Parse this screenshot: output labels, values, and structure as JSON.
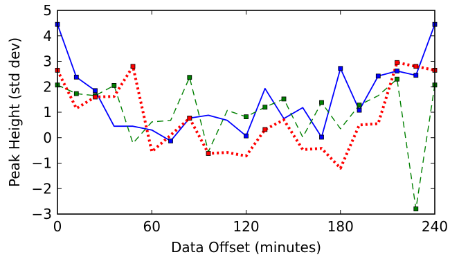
{
  "chart_data": {
    "type": "line",
    "title": "",
    "xlabel": "Data Offset (minutes)",
    "ylabel": "Peak Height (std dev)",
    "xlim": [
      0,
      240
    ],
    "ylim": [
      -3,
      5
    ],
    "xticks": [
      0,
      60,
      120,
      180,
      240
    ],
    "yticks": [
      -3,
      -2,
      -1,
      0,
      1,
      2,
      3,
      4,
      5
    ],
    "grid": false,
    "legend": "none",
    "series": [
      {
        "color": "#0000ff",
        "linestyle": "solid",
        "x": [
          0,
          12,
          24,
          36,
          48,
          60,
          72,
          84,
          96,
          108,
          120,
          132,
          144,
          156,
          168,
          180,
          192,
          204,
          216,
          228,
          240
        ],
        "y": [
          4.45,
          2.38,
          1.85,
          0.45,
          0.45,
          0.3,
          -0.13,
          0.77,
          0.88,
          0.68,
          0.07,
          1.93,
          0.75,
          1.18,
          0.02,
          2.72,
          1.08,
          2.42,
          2.62,
          2.45,
          4.45
        ],
        "markers": [
          0,
          12,
          24,
          72,
          84,
          120,
          168,
          180,
          192,
          204,
          216,
          228,
          240
        ]
      },
      {
        "color": "#008000",
        "linestyle": "dashed",
        "x": [
          0,
          12,
          24,
          36,
          48,
          60,
          72,
          84,
          96,
          108,
          120,
          132,
          144,
          156,
          168,
          180,
          192,
          204,
          216,
          228,
          240
        ],
        "y": [
          2.07,
          1.73,
          1.65,
          2.05,
          -0.22,
          0.62,
          0.68,
          2.37,
          -0.55,
          1.07,
          0.82,
          1.2,
          1.52,
          0.02,
          1.38,
          0.35,
          1.28,
          1.65,
          2.3,
          -2.8,
          2.07
        ],
        "markers": [
          0,
          12,
          24,
          36,
          84,
          120,
          132,
          144,
          168,
          192,
          216,
          228,
          240
        ]
      },
      {
        "color": "#ff0000",
        "linestyle": "dotted",
        "x": [
          0,
          12,
          24,
          36,
          48,
          60,
          72,
          84,
          96,
          108,
          120,
          132,
          144,
          156,
          168,
          180,
          192,
          204,
          216,
          228,
          240
        ],
        "y": [
          2.65,
          1.15,
          1.6,
          1.62,
          2.8,
          -0.55,
          0.1,
          0.77,
          -0.62,
          -0.58,
          -0.72,
          0.32,
          0.7,
          -0.47,
          -0.42,
          -1.2,
          0.5,
          0.55,
          2.95,
          2.8,
          2.65
        ],
        "markers": [
          0,
          24,
          48,
          84,
          96,
          132,
          216,
          228,
          240
        ]
      }
    ]
  }
}
